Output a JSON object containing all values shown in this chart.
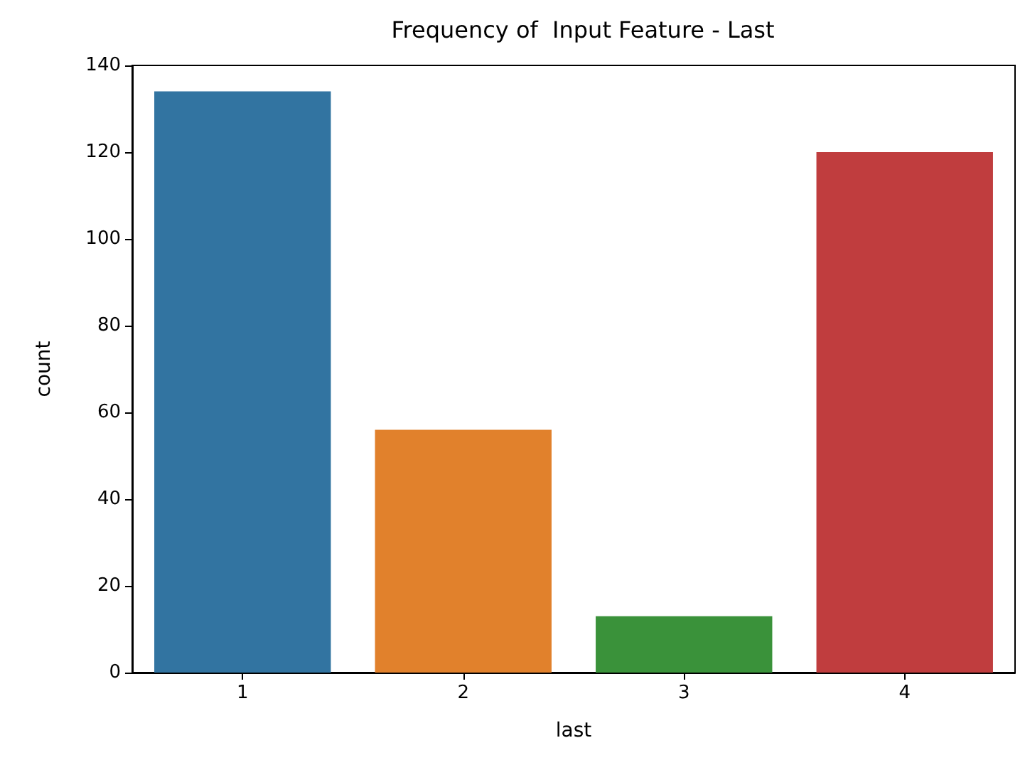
{
  "chart_data": {
    "type": "bar",
    "title": "Frequency of  Input Feature - Last",
    "xlabel": "last",
    "ylabel": "count",
    "categories": [
      "1",
      "2",
      "3",
      "4"
    ],
    "values": [
      134,
      56,
      13,
      120
    ],
    "colors": [
      "#3274a1",
      "#e1812c",
      "#3a923a",
      "#c03d3e"
    ],
    "ylim": [
      0,
      140
    ],
    "yticks": [
      0,
      20,
      40,
      60,
      80,
      100,
      120,
      140
    ],
    "grid": false
  }
}
